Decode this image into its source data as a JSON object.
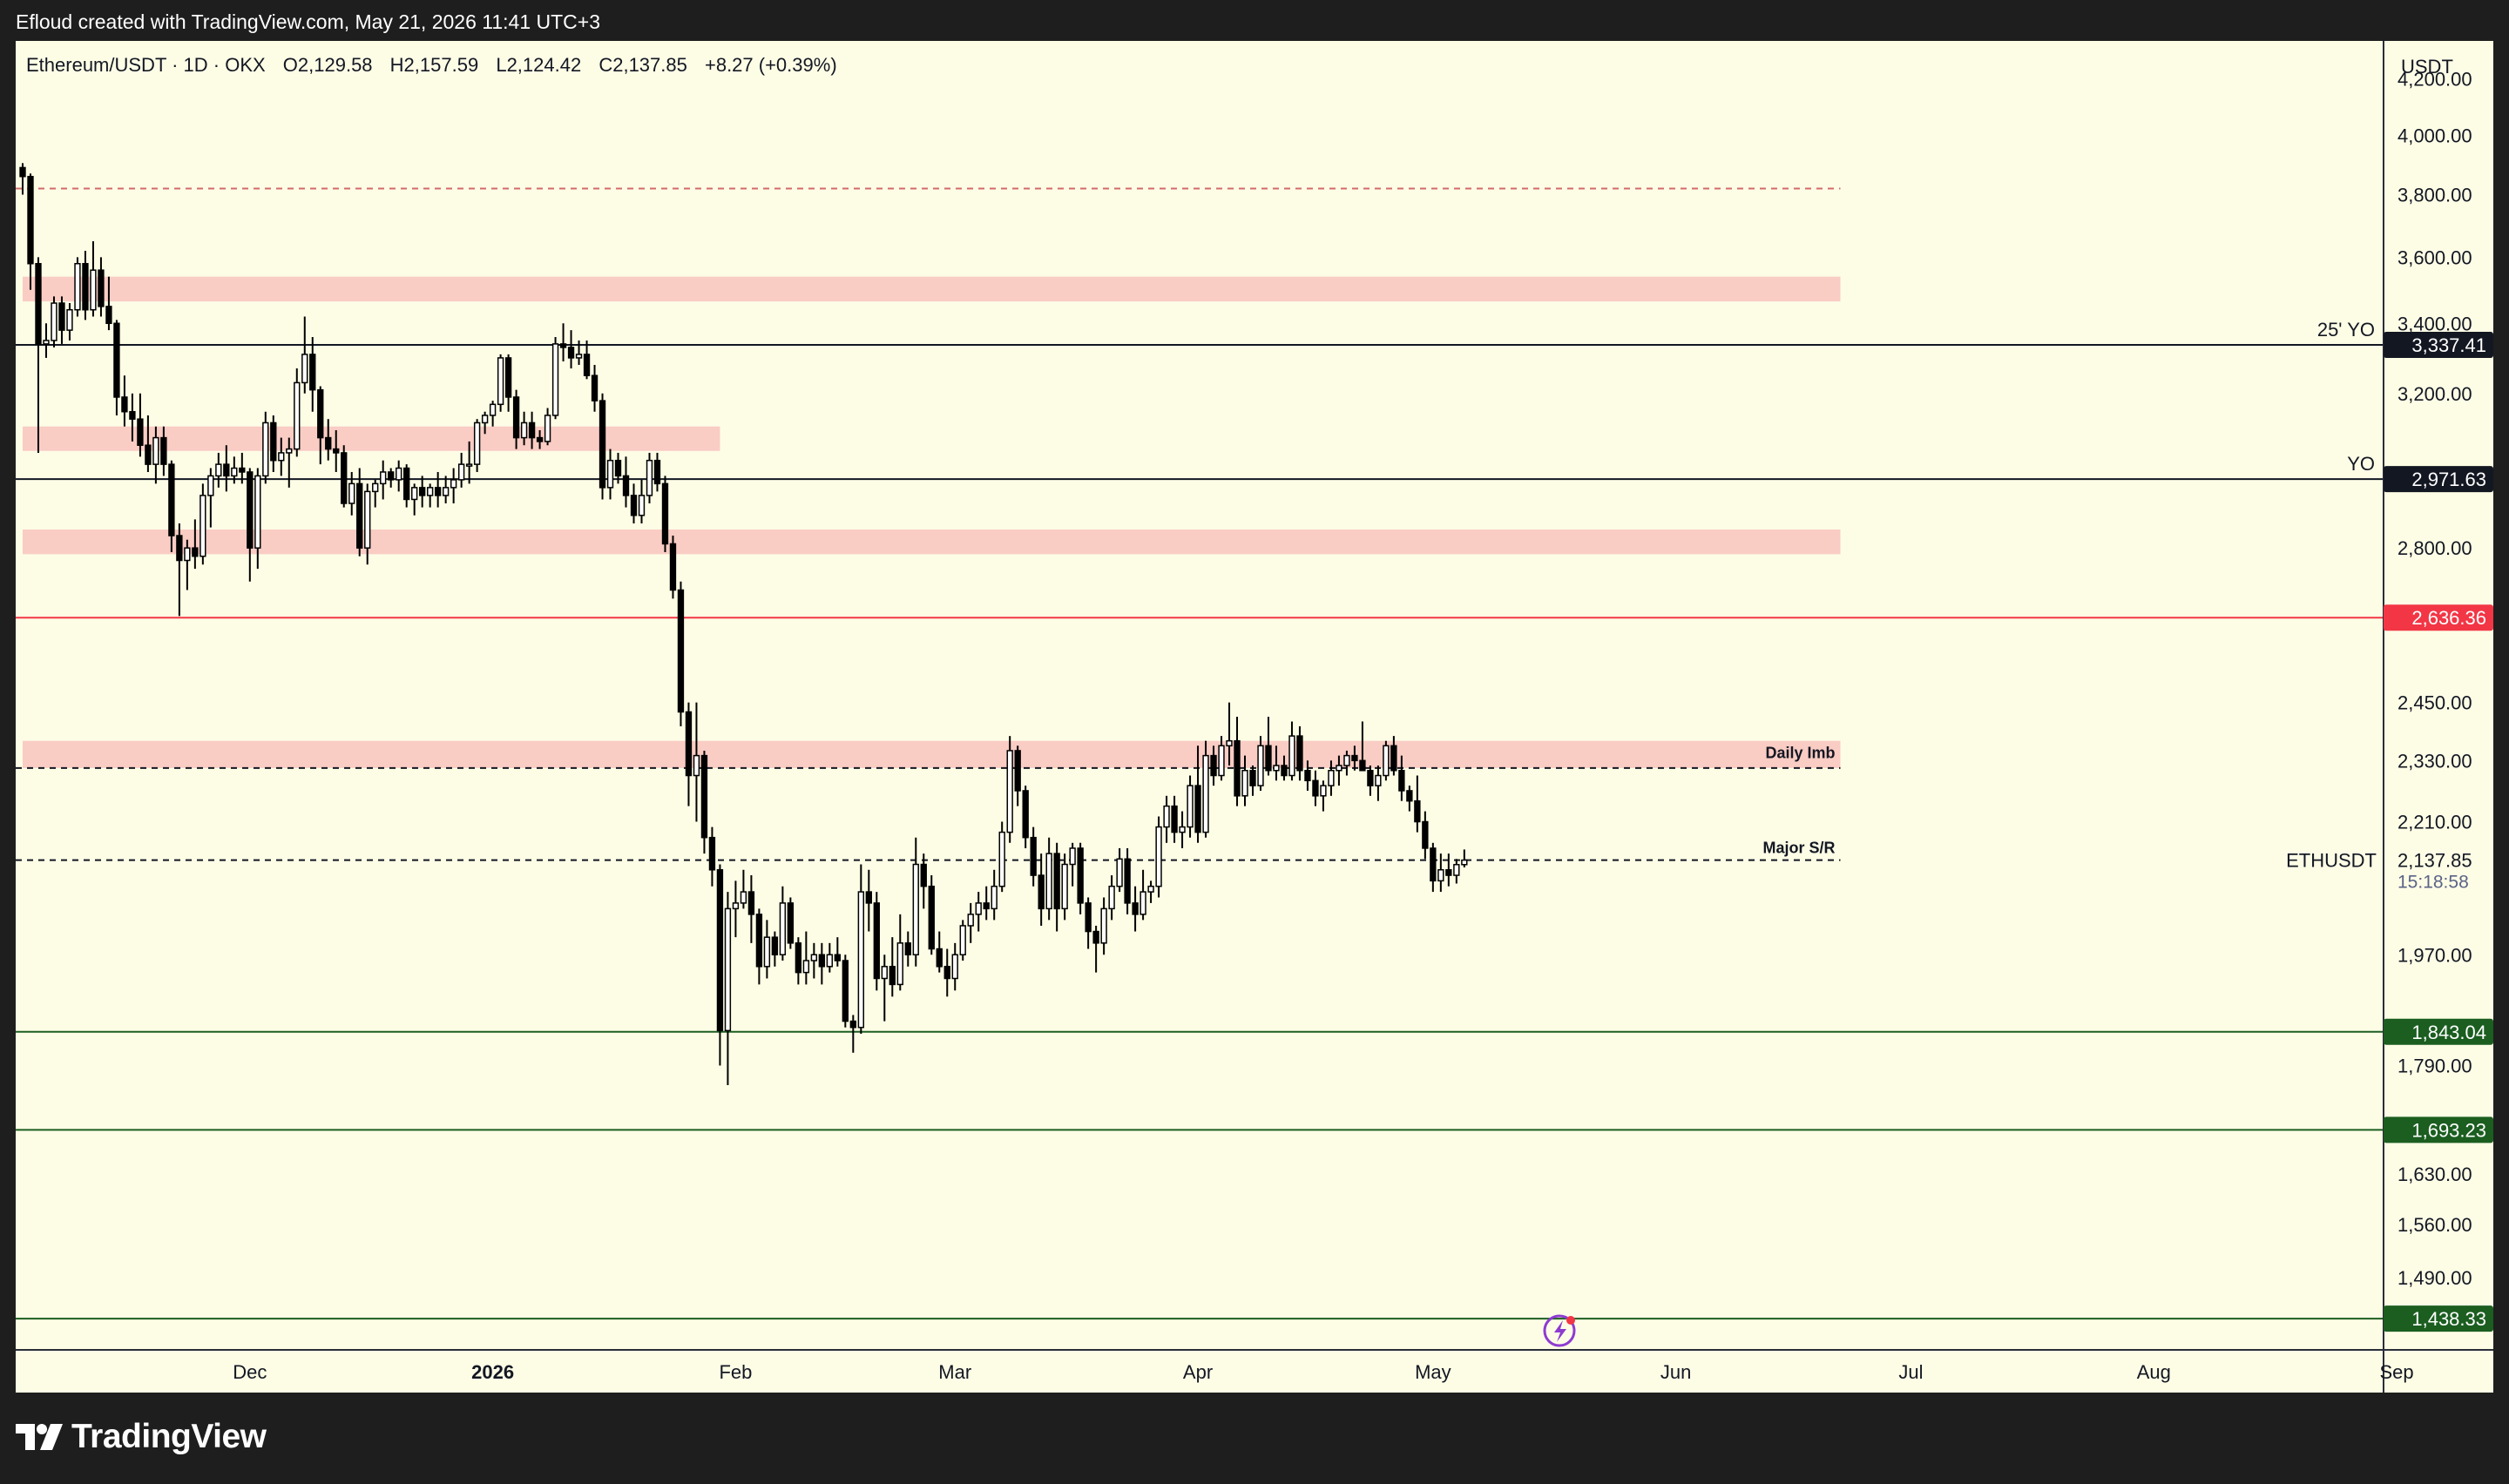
{
  "header": {
    "attribution": "Efloud created with TradingView.com, May 21, 2026 11:41 UTC+3"
  },
  "legend": {
    "symbol": "Ethereum/USDT · 1D · OKX",
    "open": "O2,129.58",
    "high": "H2,157.59",
    "low": "L2,124.42",
    "close": "C2,137.85",
    "change": "+8.27 (+0.39%)"
  },
  "price_axis": {
    "currency": "USDT",
    "countdown": "15:18:58",
    "symbol_label": "ETHUSDT"
  },
  "footer": {
    "brand": "TradingView"
  },
  "colors": {
    "chart_background": "#fdfde6",
    "zone_fill": "#f9ccc4",
    "up_candle": "#ffffff",
    "down_candle": "#000000",
    "red_level": "#f23645",
    "green_level": "#1b5e20",
    "black_level": "#131722"
  },
  "chart_data": {
    "type": "candlestick",
    "title": "Ethereum/USDT · 1D · OKX",
    "y_scale": "log",
    "ylim": [
      1400,
      4340
    ],
    "xlim": [
      "2025-11-02",
      "2026-09-12"
    ],
    "x_ticks": [
      {
        "date": "2025-12-01",
        "label": "Dec"
      },
      {
        "date": "2026-01-01",
        "label": "2026"
      },
      {
        "date": "2026-02-01",
        "label": "Feb"
      },
      {
        "date": "2026-03-01",
        "label": "Mar"
      },
      {
        "date": "2026-04-01",
        "label": "Apr"
      },
      {
        "date": "2026-05-01",
        "label": "May"
      },
      {
        "date": "2026-06-01",
        "label": "Jun"
      },
      {
        "date": "2026-07-01",
        "label": "Jul"
      },
      {
        "date": "2026-08-01",
        "label": "Aug"
      },
      {
        "date": "2026-09-01",
        "label": "Sep"
      }
    ],
    "y_ticks": [
      {
        "value": 4200,
        "label": "4,200.00"
      },
      {
        "value": 4000,
        "label": "4,000.00"
      },
      {
        "value": 3800,
        "label": "3,800.00"
      },
      {
        "value": 3600,
        "label": "3,600.00"
      },
      {
        "value": 3400,
        "label": "3,400.00"
      },
      {
        "value": 3200,
        "label": "3,200.00"
      },
      {
        "value": 2800,
        "label": "2,800.00"
      },
      {
        "value": 2450,
        "label": "2,450.00"
      },
      {
        "value": 2330,
        "label": "2,330.00"
      },
      {
        "value": 2210,
        "label": "2,210.00"
      },
      {
        "value": 1970,
        "label": "1,970.00"
      },
      {
        "value": 1790,
        "label": "1,790.00"
      },
      {
        "value": 1630,
        "label": "1,630.00"
      },
      {
        "value": 1560,
        "label": "1,560.00"
      },
      {
        "value": 1490,
        "label": "1,490.00"
      }
    ],
    "zones": [
      {
        "from": 3465,
        "to": 3540,
        "start": "2025-11-02",
        "end": "2026-06-22"
      },
      {
        "from": 3045,
        "to": 3110,
        "start": "2025-11-02",
        "end": "2026-01-30"
      },
      {
        "from": 2785,
        "to": 2845,
        "start": "2025-11-02",
        "end": "2026-06-22"
      },
      {
        "from": 2315,
        "to": 2370,
        "start": "2025-11-02",
        "end": "2026-06-22",
        "label": "Daily Imb"
      }
    ],
    "levels": [
      {
        "value": 3820,
        "style": "dashed",
        "color": "#d46a6a",
        "end": "2026-06-22"
      },
      {
        "value": 3337.41,
        "label": "3,337.41",
        "text": "25' YO",
        "style": "solid",
        "color": "#131722"
      },
      {
        "value": 2971.63,
        "label": "2,971.63",
        "text": "YO",
        "style": "solid",
        "color": "#131722"
      },
      {
        "value": 2636.36,
        "label": "2,636.36",
        "style": "solid",
        "color": "#f23645"
      },
      {
        "value": 2315,
        "style": "dashed",
        "color": "#131722",
        "end": "2026-06-22"
      },
      {
        "value": 2137.85,
        "text": "Major S/R",
        "style": "dashed",
        "color": "#131722",
        "end": "2026-06-22"
      },
      {
        "value": 1843.04,
        "label": "1,843.04",
        "style": "solid",
        "color": "#1b5e20"
      },
      {
        "value": 1693.23,
        "label": "1,693.23",
        "style": "solid",
        "color": "#1b5e20"
      },
      {
        "value": 1438.33,
        "label": "1,438.33",
        "style": "solid",
        "color": "#1b5e20"
      }
    ],
    "last_price": {
      "value": 2137.85,
      "label": "2,137.85"
    },
    "ohlc_start": "2025-11-02",
    "ohlc": [
      [
        3890,
        3905,
        3800,
        3860
      ],
      [
        3860,
        3870,
        3500,
        3580
      ],
      [
        3580,
        3600,
        3040,
        3340
      ],
      [
        3340,
        3400,
        3300,
        3350
      ],
      [
        3350,
        3480,
        3330,
        3460
      ],
      [
        3460,
        3480,
        3340,
        3380
      ],
      [
        3380,
        3460,
        3350,
        3440
      ],
      [
        3440,
        3600,
        3420,
        3580
      ],
      [
        3580,
        3620,
        3410,
        3440
      ],
      [
        3440,
        3650,
        3420,
        3560
      ],
      [
        3560,
        3600,
        3420,
        3450
      ],
      [
        3450,
        3540,
        3380,
        3400
      ],
      [
        3400,
        3410,
        3140,
        3190
      ],
      [
        3190,
        3250,
        3110,
        3150
      ],
      [
        3150,
        3200,
        3070,
        3130
      ],
      [
        3130,
        3200,
        3030,
        3060
      ],
      [
        3060,
        3140,
        2990,
        3010
      ],
      [
        3010,
        3110,
        2960,
        3080
      ],
      [
        3080,
        3110,
        2980,
        3010
      ],
      [
        3010,
        3020,
        2790,
        2830
      ],
      [
        2830,
        2860,
        2640,
        2770
      ],
      [
        2770,
        2820,
        2700,
        2800
      ],
      [
        2800,
        2870,
        2750,
        2780
      ],
      [
        2780,
        2960,
        2760,
        2930
      ],
      [
        2930,
        3000,
        2850,
        2980
      ],
      [
        2980,
        3040,
        2950,
        3010
      ],
      [
        3010,
        3060,
        2940,
        2980
      ],
      [
        2980,
        3030,
        2960,
        3000
      ],
      [
        3000,
        3040,
        2960,
        2990
      ],
      [
        2990,
        3000,
        2720,
        2800
      ],
      [
        2800,
        3000,
        2750,
        2980
      ],
      [
        2980,
        3150,
        2960,
        3120
      ],
      [
        3120,
        3140,
        2990,
        3020
      ],
      [
        3020,
        3080,
        2980,
        3040
      ],
      [
        3040,
        3080,
        2950,
        3050
      ],
      [
        3050,
        3270,
        3030,
        3230
      ],
      [
        3230,
        3420,
        3200,
        3310
      ],
      [
        3310,
        3360,
        3150,
        3210
      ],
      [
        3210,
        3220,
        3010,
        3080
      ],
      [
        3080,
        3130,
        3020,
        3050
      ],
      [
        3050,
        3100,
        2990,
        3040
      ],
      [
        3040,
        3060,
        2900,
        2910
      ],
      [
        2910,
        2990,
        2880,
        2960
      ],
      [
        2960,
        3000,
        2780,
        2800
      ],
      [
        2800,
        2960,
        2760,
        2940
      ],
      [
        2940,
        2970,
        2900,
        2960
      ],
      [
        2960,
        3020,
        2920,
        2990
      ],
      [
        2990,
        3000,
        2950,
        2970
      ],
      [
        2970,
        3020,
        2940,
        3000
      ],
      [
        3000,
        3010,
        2900,
        2920
      ],
      [
        2920,
        2960,
        2880,
        2950
      ],
      [
        2950,
        2980,
        2900,
        2930
      ],
      [
        2930,
        2960,
        2900,
        2950
      ],
      [
        2950,
        2990,
        2900,
        2930
      ],
      [
        2930,
        2980,
        2910,
        2950
      ],
      [
        2950,
        3000,
        2910,
        2970
      ],
      [
        2970,
        3040,
        2950,
        3010
      ],
      [
        3010,
        3070,
        2960,
        3010
      ],
      [
        3010,
        3130,
        2990,
        3120
      ],
      [
        3120,
        3150,
        3090,
        3140
      ],
      [
        3140,
        3180,
        3110,
        3170
      ],
      [
        3170,
        3310,
        3150,
        3300
      ],
      [
        3300,
        3310,
        3150,
        3190
      ],
      [
        3190,
        3210,
        3050,
        3080
      ],
      [
        3080,
        3150,
        3060,
        3120
      ],
      [
        3120,
        3150,
        3050,
        3080
      ],
      [
        3080,
        3100,
        3050,
        3070
      ],
      [
        3070,
        3160,
        3060,
        3140
      ],
      [
        3140,
        3360,
        3130,
        3340
      ],
      [
        3340,
        3400,
        3290,
        3330
      ],
      [
        3330,
        3380,
        3270,
        3300
      ],
      [
        3300,
        3350,
        3280,
        3310
      ],
      [
        3310,
        3350,
        3240,
        3250
      ],
      [
        3250,
        3280,
        3150,
        3180
      ],
      [
        3180,
        3200,
        2920,
        2950
      ],
      [
        2950,
        3050,
        2920,
        3020
      ],
      [
        3020,
        3040,
        2960,
        2980
      ],
      [
        2980,
        3030,
        2900,
        2930
      ],
      [
        2930,
        2960,
        2860,
        2880
      ],
      [
        2880,
        2970,
        2860,
        2930
      ],
      [
        2930,
        3040,
        2910,
        3020
      ],
      [
        3020,
        3040,
        2940,
        2960
      ],
      [
        2960,
        2980,
        2790,
        2810
      ],
      [
        2810,
        2830,
        2680,
        2700
      ],
      [
        2700,
        2720,
        2400,
        2430
      ],
      [
        2430,
        2450,
        2240,
        2300
      ],
      [
        2300,
        2450,
        2210,
        2340
      ],
      [
        2340,
        2350,
        2150,
        2180
      ],
      [
        2180,
        2200,
        2090,
        2120
      ],
      [
        2120,
        2130,
        1790,
        1845
      ],
      [
        1845,
        2080,
        1760,
        2050
      ],
      [
        2050,
        2100,
        2000,
        2060
      ],
      [
        2060,
        2120,
        2050,
        2080
      ],
      [
        2080,
        2110,
        1990,
        2040
      ],
      [
        2040,
        2050,
        1920,
        1950
      ],
      [
        1950,
        2030,
        1930,
        2000
      ],
      [
        2000,
        2010,
        1950,
        1970
      ],
      [
        1970,
        2090,
        1960,
        2060
      ],
      [
        2060,
        2070,
        1980,
        1990
      ],
      [
        1990,
        2000,
        1920,
        1940
      ],
      [
        1940,
        2010,
        1920,
        1960
      ],
      [
        1960,
        1990,
        1930,
        1970
      ],
      [
        1970,
        1990,
        1920,
        1950
      ],
      [
        1950,
        1990,
        1940,
        1970
      ],
      [
        1970,
        2000,
        1950,
        1960
      ],
      [
        1960,
        1970,
        1850,
        1860
      ],
      [
        1860,
        1870,
        1810,
        1850
      ],
      [
        1850,
        2130,
        1840,
        2080
      ],
      [
        2080,
        2120,
        2010,
        2060
      ],
      [
        2060,
        2080,
        1910,
        1930
      ],
      [
        1930,
        1970,
        1860,
        1950
      ],
      [
        1950,
        2000,
        1900,
        1920
      ],
      [
        1920,
        2040,
        1910,
        1990
      ],
      [
        1990,
        2010,
        1950,
        1970
      ],
      [
        1970,
        2180,
        1950,
        2130
      ],
      [
        2130,
        2150,
        2050,
        2090
      ],
      [
        2090,
        2110,
        1970,
        1980
      ],
      [
        1980,
        2010,
        1940,
        1950
      ],
      [
        1950,
        1980,
        1900,
        1930
      ],
      [
        1930,
        1990,
        1910,
        1970
      ],
      [
        1970,
        2030,
        1960,
        2020
      ],
      [
        2020,
        2060,
        1990,
        2040
      ],
      [
        2040,
        2080,
        2010,
        2060
      ],
      [
        2060,
        2090,
        2030,
        2050
      ],
      [
        2050,
        2120,
        2030,
        2090
      ],
      [
        2090,
        2210,
        2080,
        2190
      ],
      [
        2190,
        2380,
        2170,
        2350
      ],
      [
        2350,
        2360,
        2240,
        2270
      ],
      [
        2270,
        2280,
        2160,
        2180
      ],
      [
        2180,
        2200,
        2090,
        2110
      ],
      [
        2110,
        2150,
        2020,
        2050
      ],
      [
        2050,
        2180,
        2030,
        2150
      ],
      [
        2150,
        2170,
        2010,
        2050
      ],
      [
        2050,
        2150,
        2030,
        2130
      ],
      [
        2130,
        2170,
        2090,
        2160
      ],
      [
        2160,
        2170,
        2040,
        2060
      ],
      [
        2060,
        2070,
        1980,
        2010
      ],
      [
        2010,
        2020,
        1940,
        1990
      ],
      [
        1990,
        2070,
        1970,
        2050
      ],
      [
        2050,
        2110,
        2030,
        2090
      ],
      [
        2090,
        2160,
        2080,
        2140
      ],
      [
        2140,
        2160,
        2040,
        2060
      ],
      [
        2060,
        2090,
        2010,
        2040
      ],
      [
        2040,
        2120,
        2030,
        2080
      ],
      [
        2080,
        2100,
        2060,
        2090
      ],
      [
        2090,
        2220,
        2070,
        2200
      ],
      [
        2200,
        2260,
        2170,
        2240
      ],
      [
        2240,
        2260,
        2170,
        2190
      ],
      [
        2190,
        2230,
        2160,
        2200
      ],
      [
        2200,
        2300,
        2180,
        2280
      ],
      [
        2280,
        2360,
        2170,
        2190
      ],
      [
        2190,
        2370,
        2180,
        2340
      ],
      [
        2340,
        2360,
        2280,
        2300
      ],
      [
        2300,
        2380,
        2290,
        2360
      ],
      [
        2360,
        2450,
        2320,
        2370
      ],
      [
        2370,
        2420,
        2240,
        2260
      ],
      [
        2260,
        2340,
        2240,
        2310
      ],
      [
        2310,
        2320,
        2260,
        2280
      ],
      [
        2280,
        2380,
        2270,
        2360
      ],
      [
        2360,
        2420,
        2300,
        2310
      ],
      [
        2310,
        2360,
        2290,
        2320
      ],
      [
        2320,
        2340,
        2290,
        2300
      ],
      [
        2300,
        2410,
        2290,
        2380
      ],
      [
        2380,
        2400,
        2290,
        2310
      ],
      [
        2310,
        2330,
        2270,
        2290
      ],
      [
        2290,
        2310,
        2240,
        2260
      ],
      [
        2260,
        2290,
        2230,
        2280
      ],
      [
        2280,
        2330,
        2260,
        2310
      ],
      [
        2310,
        2340,
        2280,
        2320
      ],
      [
        2320,
        2350,
        2300,
        2340
      ],
      [
        2340,
        2360,
        2310,
        2330
      ],
      [
        2330,
        2410,
        2310,
        2310
      ],
      [
        2310,
        2320,
        2260,
        2280
      ],
      [
        2280,
        2320,
        2250,
        2300
      ],
      [
        2300,
        2370,
        2290,
        2360
      ],
      [
        2360,
        2380,
        2300,
        2310
      ],
      [
        2310,
        2340,
        2250,
        2270
      ],
      [
        2270,
        2280,
        2230,
        2250
      ],
      [
        2250,
        2300,
        2190,
        2210
      ],
      [
        2210,
        2230,
        2140,
        2160
      ],
      [
        2160,
        2170,
        2080,
        2100
      ],
      [
        2100,
        2150,
        2080,
        2120
      ],
      [
        2120,
        2150,
        2090,
        2110
      ],
      [
        2110,
        2140,
        2095,
        2129.58
      ],
      [
        2129.58,
        2157.59,
        2124.42,
        2137.85
      ]
    ]
  }
}
